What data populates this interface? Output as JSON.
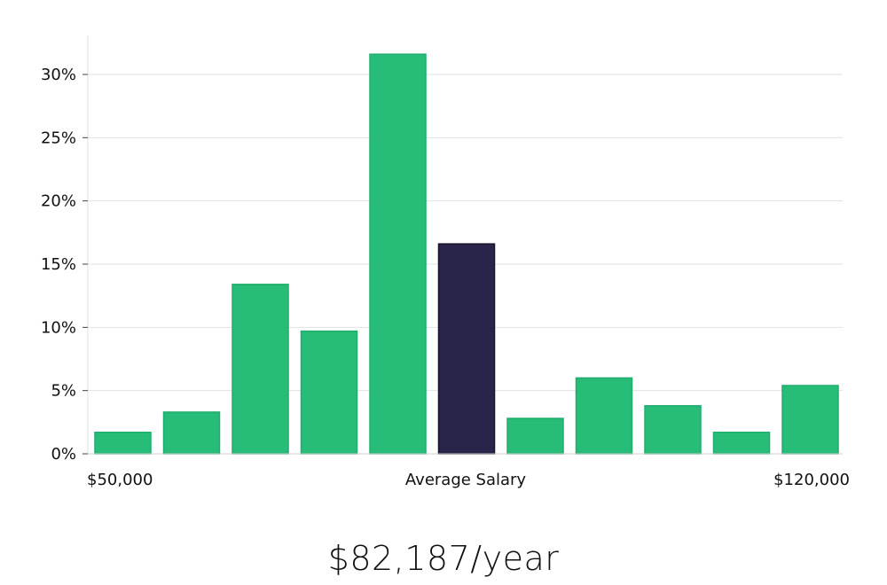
{
  "chart_data": {
    "type": "bar",
    "values": [
      1.7,
      3.3,
      13.4,
      9.7,
      31.6,
      16.6,
      2.8,
      6.0,
      3.8,
      1.7,
      5.4
    ],
    "highlight_index": 5,
    "ylim": [
      0,
      30
    ],
    "yticks": [
      "0%",
      "5%",
      "10%",
      "15%",
      "20%",
      "25%",
      "30%"
    ],
    "x_range_labels": {
      "min": "$50,000",
      "middle": "Average Salary",
      "max": "$120,000"
    },
    "grid": true,
    "colors": {
      "bar": "#27bd78",
      "highlight": "#28244a",
      "grid": "#e2e2e2"
    }
  },
  "summary": {
    "salary": "$82,187/year"
  }
}
